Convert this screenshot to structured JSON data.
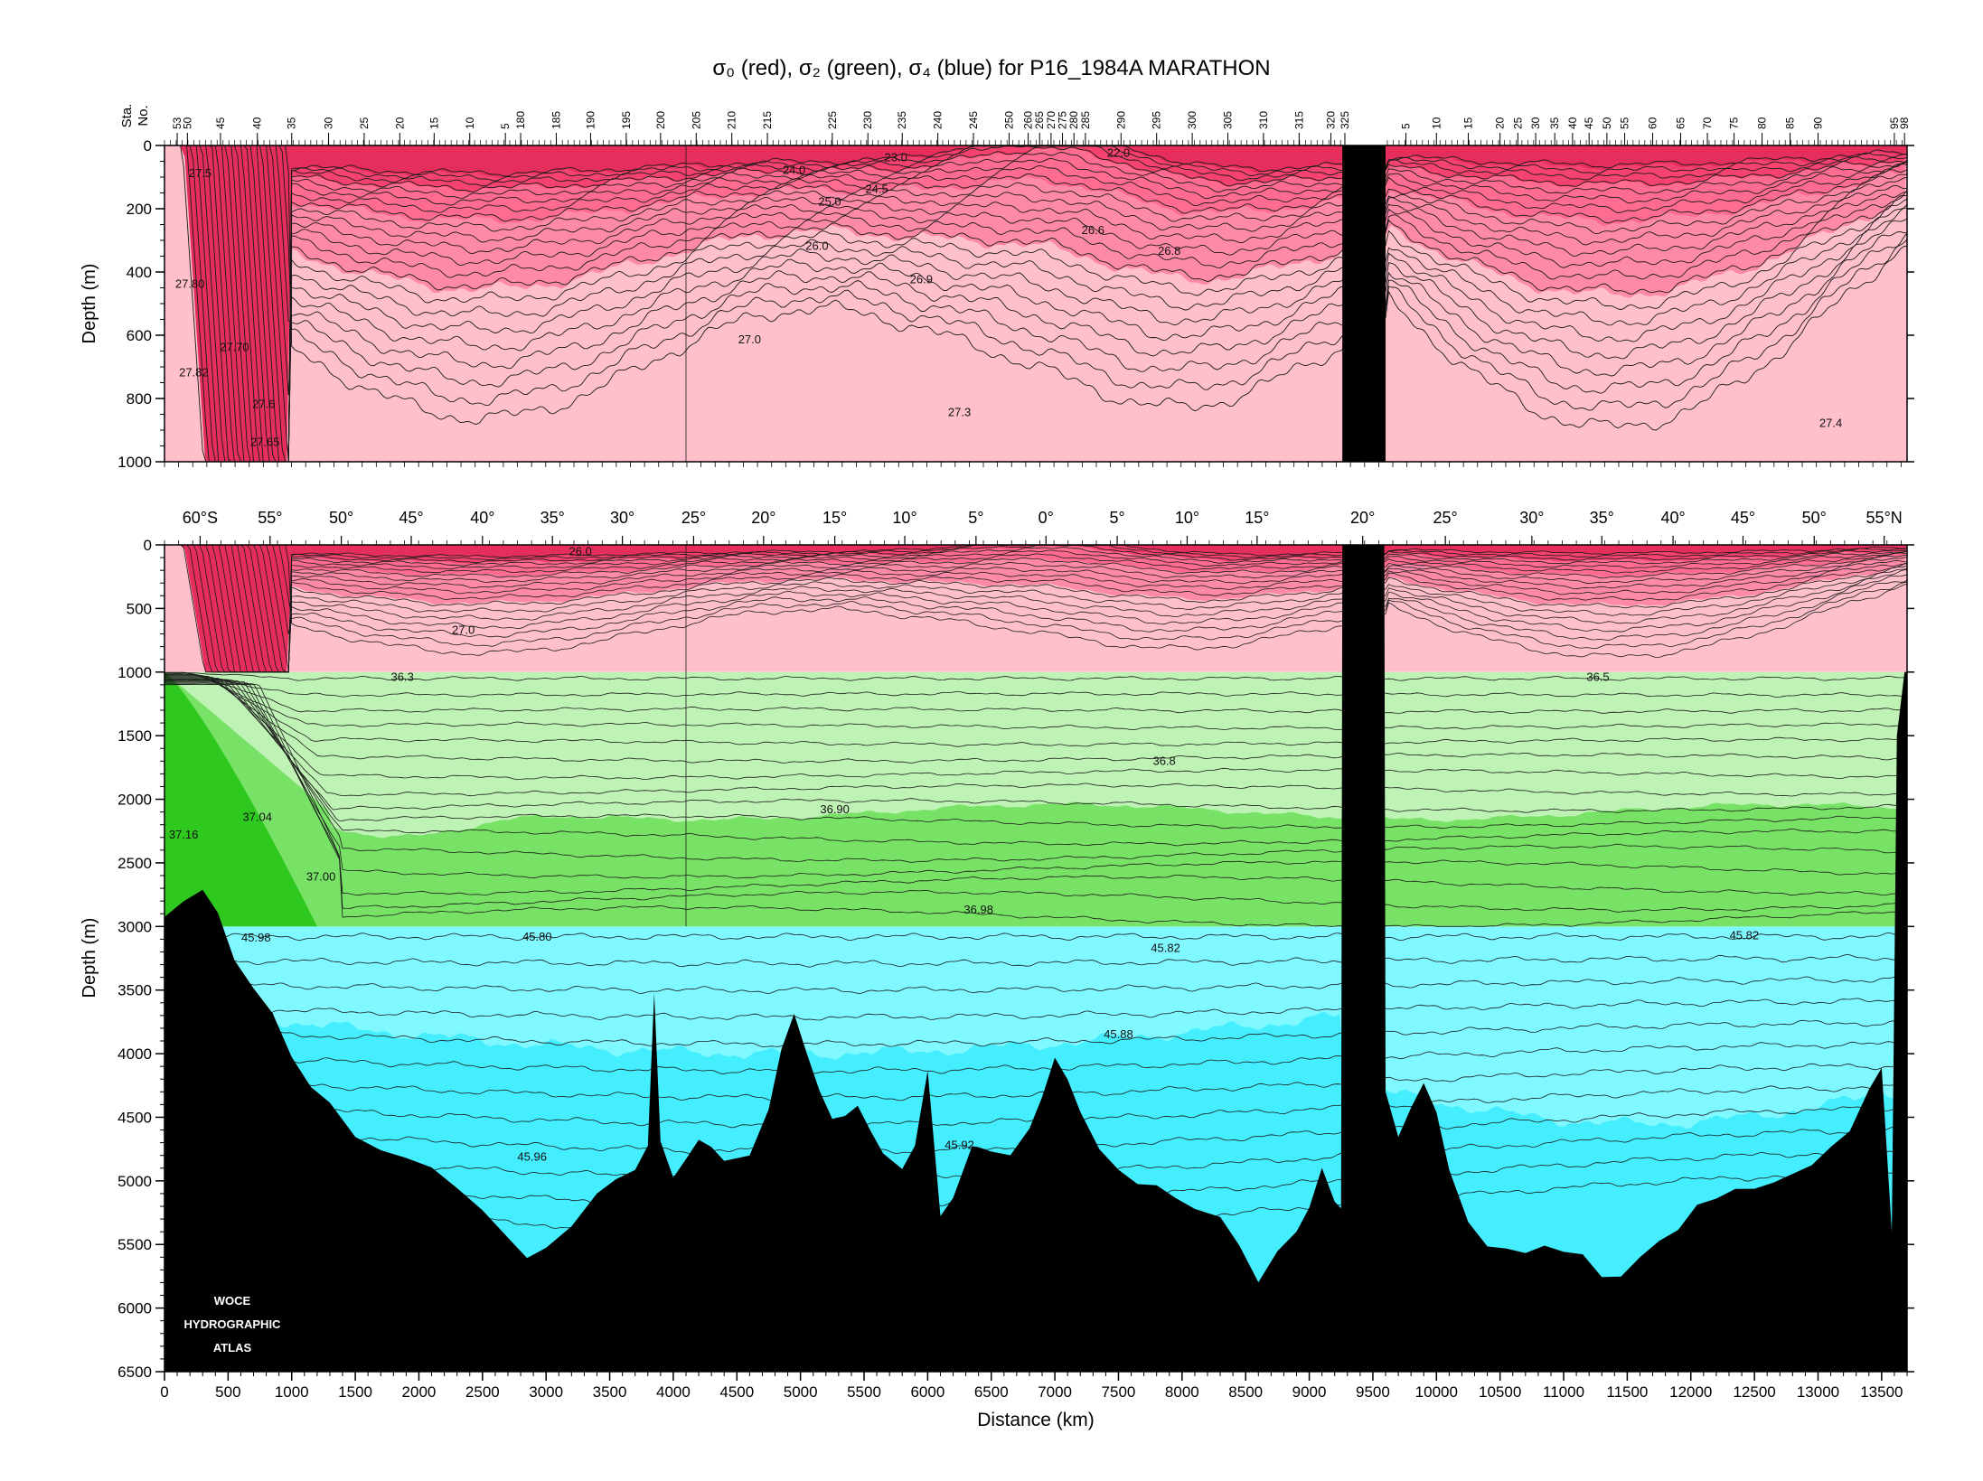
{
  "title": {
    "s0": "σ₀ (red), ",
    "s2": "σ₂ (green), ",
    "s4": "σ₄ (blue) for P16_1984A MARATHON"
  },
  "colors": {
    "sigma0": [
      "#ffc0cc",
      "#ff8aa8",
      "#ff6c90",
      "#f5426e",
      "#e62e5c"
    ],
    "sigma2": [
      "#bff2b5",
      "#78e266",
      "#2ec81e"
    ],
    "sigma4": [
      "#7ff8ff",
      "#44eeff"
    ],
    "bottom": "#000000",
    "contour": "#1a1a1a"
  },
  "logo": [
    "WOCE",
    "HYDROGRAPHIC",
    "ATLAS"
  ],
  "chart_data": [
    {
      "type": "contour-section",
      "panel": "upper",
      "xlabel": "",
      "ylabel": "Depth (m)",
      "ylim": [
        1000,
        0
      ],
      "xlim": [
        0,
        13700
      ],
      "yticks": [
        0,
        200,
        400,
        600,
        800,
        1000
      ],
      "station_axis_label": [
        "Sta.",
        "No."
      ],
      "stations": [
        {
          "label": "53",
          "km": 100
        },
        {
          "label": "50",
          "km": 180
        },
        {
          "label": "45",
          "km": 440
        },
        {
          "label": "40",
          "km": 730
        },
        {
          "label": "35",
          "km": 1000
        },
        {
          "label": "30",
          "km": 1290
        },
        {
          "label": "25",
          "km": 1570
        },
        {
          "label": "20",
          "km": 1850
        },
        {
          "label": "15",
          "km": 2120
        },
        {
          "label": "10",
          "km": 2400
        },
        {
          "label": "5",
          "km": 2680
        },
        {
          "label": "180",
          "km": 2800
        },
        {
          "label": "185",
          "km": 3080
        },
        {
          "label": "190",
          "km": 3350
        },
        {
          "label": "195",
          "km": 3630
        },
        {
          "label": "200",
          "km": 3900
        },
        {
          "label": "205",
          "km": 4180
        },
        {
          "label": "210",
          "km": 4460
        },
        {
          "label": "215",
          "km": 4740
        },
        {
          "label": "225",
          "km": 5250
        },
        {
          "label": "230",
          "km": 5530
        },
        {
          "label": "235",
          "km": 5800
        },
        {
          "label": "240",
          "km": 6080
        },
        {
          "label": "245",
          "km": 6360
        },
        {
          "label": "250",
          "km": 6640
        },
        {
          "label": "260",
          "km": 6790
        },
        {
          "label": "265",
          "km": 6880
        },
        {
          "label": "270",
          "km": 6970
        },
        {
          "label": "275",
          "km": 7060
        },
        {
          "label": "280",
          "km": 7150
        },
        {
          "label": "285",
          "km": 7240
        },
        {
          "label": "290",
          "km": 7520
        },
        {
          "label": "295",
          "km": 7800
        },
        {
          "label": "300",
          "km": 8080
        },
        {
          "label": "305",
          "km": 8360
        },
        {
          "label": "310",
          "km": 8640
        },
        {
          "label": "315",
          "km": 8920
        },
        {
          "label": "320",
          "km": 9170
        },
        {
          "label": "325",
          "km": 9280
        },
        {
          "label": "5",
          "km": 9760
        },
        {
          "label": "10",
          "km": 10000
        },
        {
          "label": "15",
          "km": 10250
        },
        {
          "label": "20",
          "km": 10500
        },
        {
          "label": "25",
          "km": 10640
        },
        {
          "label": "30",
          "km": 10780
        },
        {
          "label": "35",
          "km": 10930
        },
        {
          "label": "40",
          "km": 11070
        },
        {
          "label": "45",
          "km": 11200
        },
        {
          "label": "50",
          "km": 11340
        },
        {
          "label": "55",
          "km": 11480
        },
        {
          "label": "60",
          "km": 11700
        },
        {
          "label": "65",
          "km": 11920
        },
        {
          "label": "70",
          "km": 12130
        },
        {
          "label": "75",
          "km": 12340
        },
        {
          "label": "80",
          "km": 12560
        },
        {
          "label": "85",
          "km": 12780
        },
        {
          "label": "90",
          "km": 13000
        },
        {
          "label": "95",
          "km": 13600
        },
        {
          "label": "98",
          "km": 13680
        }
      ],
      "contour_labels": [
        {
          "text": "27.5",
          "km": 280,
          "depth": 100
        },
        {
          "text": "27.80",
          "km": 200,
          "depth": 450
        },
        {
          "text": "27.70",
          "km": 550,
          "depth": 650
        },
        {
          "text": "27.82",
          "km": 230,
          "depth": 730
        },
        {
          "text": "27.6",
          "km": 780,
          "depth": 830
        },
        {
          "text": "27.65",
          "km": 790,
          "depth": 950
        },
        {
          "text": "24.0",
          "km": 4950,
          "depth": 90
        },
        {
          "text": "23.0",
          "km": 5750,
          "depth": 50
        },
        {
          "text": "22.0",
          "km": 7500,
          "depth": 35
        },
        {
          "text": "24.5",
          "km": 5600,
          "depth": 150
        },
        {
          "text": "25.0",
          "km": 5230,
          "depth": 190
        },
        {
          "text": "26.0",
          "km": 5130,
          "depth": 330
        },
        {
          "text": "26.6",
          "km": 7300,
          "depth": 280
        },
        {
          "text": "26.8",
          "km": 7900,
          "depth": 345
        },
        {
          "text": "26.9",
          "km": 5950,
          "depth": 435
        },
        {
          "text": "27.0",
          "km": 4600,
          "depth": 625
        },
        {
          "text": "27.3",
          "km": 6250,
          "depth": 855
        },
        {
          "text": "27.4",
          "km": 13100,
          "depth": 890
        }
      ]
    },
    {
      "type": "contour-section",
      "panel": "lower",
      "xlabel": "Distance (km)",
      "ylabel": "Depth (m)",
      "ylim": [
        6500,
        0
      ],
      "xlim": [
        0,
        13700
      ],
      "xticks": [
        0,
        500,
        1000,
        1500,
        2000,
        2500,
        3000,
        3500,
        4000,
        4500,
        5000,
        5500,
        6000,
        6500,
        7000,
        7500,
        8000,
        8500,
        9000,
        9500,
        10000,
        10500,
        11000,
        11500,
        12000,
        12500,
        13000,
        13500
      ],
      "yticks": [
        0,
        500,
        1000,
        1500,
        2000,
        2500,
        3000,
        3500,
        4000,
        4500,
        5000,
        5500,
        6000,
        6500
      ],
      "latitudes": [
        {
          "label": "60°S",
          "km": 280
        },
        {
          "label": "55°",
          "km": 830
        },
        {
          "label": "50°",
          "km": 1390
        },
        {
          "label": "45°",
          "km": 1940
        },
        {
          "label": "40°",
          "km": 2500
        },
        {
          "label": "35°",
          "km": 3050
        },
        {
          "label": "30°",
          "km": 3600
        },
        {
          "label": "25°",
          "km": 4160
        },
        {
          "label": "20°",
          "km": 4710
        },
        {
          "label": "15°",
          "km": 5270
        },
        {
          "label": "10°",
          "km": 5820
        },
        {
          "label": "5°",
          "km": 6380
        },
        {
          "label": "0°",
          "km": 6930
        },
        {
          "label": "5°",
          "km": 7490
        },
        {
          "label": "10°",
          "km": 8040
        },
        {
          "label": "15°",
          "km": 8590
        },
        {
          "label": "20°",
          "km": 9420
        },
        {
          "label": "25°",
          "km": 10070
        },
        {
          "label": "30°",
          "km": 10750
        },
        {
          "label": "35°",
          "km": 11300
        },
        {
          "label": "40°",
          "km": 11860
        },
        {
          "label": "45°",
          "km": 12410
        },
        {
          "label": "50°",
          "km": 12970
        },
        {
          "label": "55°N",
          "km": 13520
        }
      ],
      "layers": [
        {
          "name": "σ₀",
          "depth_range": [
            0,
            1000
          ]
        },
        {
          "name": "σ₂",
          "depth_range": [
            1000,
            3000
          ]
        },
        {
          "name": "σ₄",
          "depth_range": [
            3000,
            6500
          ]
        }
      ],
      "contour_labels": [
        {
          "text": "26.0",
          "km": 3270,
          "depth": 80
        },
        {
          "text": "27.0",
          "km": 2350,
          "depth": 700
        },
        {
          "text": "36.3",
          "km": 1870,
          "depth": 1070
        },
        {
          "text": "36.5",
          "km": 11270,
          "depth": 1070
        },
        {
          "text": "36.8",
          "km": 7860,
          "depth": 1730
        },
        {
          "text": "36.90",
          "km": 5270,
          "depth": 2110
        },
        {
          "text": "37.16",
          "km": 150,
          "depth": 2310
        },
        {
          "text": "37.04",
          "km": 730,
          "depth": 2170
        },
        {
          "text": "37.00",
          "km": 1230,
          "depth": 2640
        },
        {
          "text": "36.98",
          "km": 6400,
          "depth": 2900
        },
        {
          "text": "45.98",
          "km": 720,
          "depth": 3120
        },
        {
          "text": "45.80",
          "km": 2930,
          "depth": 3110
        },
        {
          "text": "45.82",
          "km": 7870,
          "depth": 3200
        },
        {
          "text": "45.82",
          "km": 12420,
          "depth": 3100
        },
        {
          "text": "45.88",
          "km": 7500,
          "depth": 3880
        },
        {
          "text": "45.96",
          "km": 2890,
          "depth": 4840
        },
        {
          "text": "45.92",
          "km": 6250,
          "depth": 4750
        }
      ],
      "bathymetry": [
        [
          0,
          2950
        ],
        [
          150,
          2780
        ],
        [
          300,
          2720
        ],
        [
          420,
          2950
        ],
        [
          550,
          3250
        ],
        [
          700,
          3500
        ],
        [
          850,
          3700
        ],
        [
          1000,
          4000
        ],
        [
          1150,
          4250
        ],
        [
          1300,
          4400
        ],
        [
          1500,
          4650
        ],
        [
          1700,
          4750
        ],
        [
          1900,
          4850
        ],
        [
          2100,
          4950
        ],
        [
          2300,
          5050
        ],
        [
          2500,
          5200
        ],
        [
          2700,
          5450
        ],
        [
          2850,
          5620
        ],
        [
          3000,
          5500
        ],
        [
          3200,
          5350
        ],
        [
          3400,
          5100
        ],
        [
          3550,
          4950
        ],
        [
          3700,
          4900
        ],
        [
          3800,
          4750
        ],
        [
          3850,
          3500
        ],
        [
          3900,
          4700
        ],
        [
          4000,
          4950
        ],
        [
          4100,
          4850
        ],
        [
          4200,
          4700
        ],
        [
          4300,
          4700
        ],
        [
          4400,
          4850
        ],
        [
          4600,
          4800
        ],
        [
          4750,
          4400
        ],
        [
          4850,
          4000
        ],
        [
          4950,
          3700
        ],
        [
          5050,
          4000
        ],
        [
          5150,
          4300
        ],
        [
          5250,
          4450
        ],
        [
          5350,
          4500
        ],
        [
          5450,
          4450
        ],
        [
          5550,
          4600
        ],
        [
          5650,
          4800
        ],
        [
          5800,
          4900
        ],
        [
          5900,
          4700
        ],
        [
          6000,
          4150
        ],
        [
          6100,
          5250
        ],
        [
          6200,
          5150
        ],
        [
          6350,
          4750
        ],
        [
          6500,
          4750
        ],
        [
          6650,
          4800
        ],
        [
          6800,
          4600
        ],
        [
          6900,
          4300
        ],
        [
          7000,
          4050
        ],
        [
          7100,
          4200
        ],
        [
          7200,
          4450
        ],
        [
          7350,
          4800
        ],
        [
          7500,
          4900
        ],
        [
          7650,
          5000
        ],
        [
          7800,
          5050
        ],
        [
          7950,
          5100
        ],
        [
          8100,
          5200
        ],
        [
          8300,
          5300
        ],
        [
          8450,
          5500
        ],
        [
          8600,
          5750
        ],
        [
          8750,
          5550
        ],
        [
          8900,
          5400
        ],
        [
          9000,
          5200
        ],
        [
          9100,
          4950
        ],
        [
          9200,
          5150
        ],
        [
          9250,
          5200
        ],
        [
          9260,
          0
        ],
        [
          9590,
          0
        ],
        [
          9600,
          4300
        ],
        [
          9700,
          4650
        ],
        [
          9800,
          4400
        ],
        [
          9900,
          4250
        ],
        [
          10000,
          4450
        ],
        [
          10100,
          4950
        ],
        [
          10250,
          5350
        ],
        [
          10400,
          5500
        ],
        [
          10550,
          5550
        ],
        [
          10700,
          5600
        ],
        [
          10850,
          5500
        ],
        [
          11000,
          5550
        ],
        [
          11150,
          5600
        ],
        [
          11300,
          5700
        ],
        [
          11450,
          5750
        ],
        [
          11600,
          5600
        ],
        [
          11750,
          5450
        ],
        [
          11900,
          5350
        ],
        [
          12050,
          5200
        ],
        [
          12200,
          5100
        ],
        [
          12350,
          5050
        ],
        [
          12500,
          5100
        ],
        [
          12650,
          5000
        ],
        [
          12800,
          4950
        ],
        [
          12950,
          4900
        ],
        [
          13100,
          4750
        ],
        [
          13250,
          4600
        ],
        [
          13400,
          4350
        ],
        [
          13500,
          4100
        ],
        [
          13580,
          5400
        ],
        [
          13620,
          1500
        ],
        [
          13680,
          1000
        ],
        [
          13700,
          1000
        ]
      ]
    }
  ]
}
